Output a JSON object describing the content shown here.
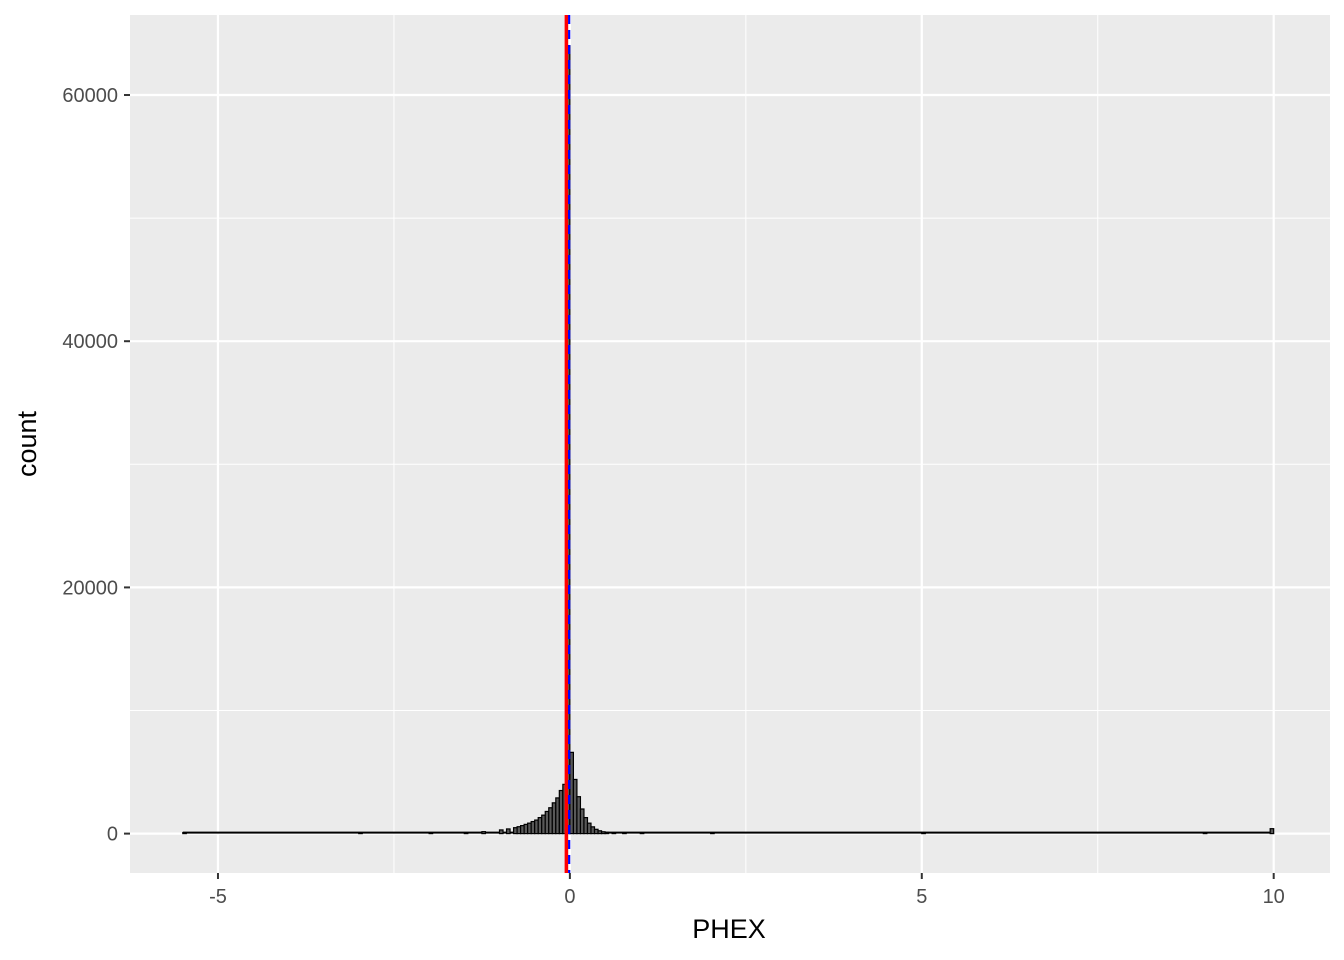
{
  "chart_data": {
    "type": "histogram",
    "title": "",
    "xlabel": "PHEX",
    "ylabel": "count",
    "xlim": [
      -6.25,
      10.8
    ],
    "ylim": [
      -3200,
      66500
    ],
    "x_ticks": [
      -5,
      0,
      5,
      10
    ],
    "x_tick_labels": [
      "-5",
      "0",
      "5",
      "10"
    ],
    "y_ticks": [
      0,
      20000,
      40000,
      60000
    ],
    "y_tick_labels": [
      "0",
      "20000",
      "40000",
      "60000"
    ],
    "grid": true,
    "bin_width": 0.05,
    "bins": [
      {
        "x": -5.5,
        "count": 30
      },
      {
        "x": -3.0,
        "count": 30
      },
      {
        "x": -2.0,
        "count": 40
      },
      {
        "x": -1.5,
        "count": 80
      },
      {
        "x": -1.25,
        "count": 160
      },
      {
        "x": -1.0,
        "count": 300
      },
      {
        "x": -0.9,
        "count": 380
      },
      {
        "x": -0.8,
        "count": 480
      },
      {
        "x": -0.75,
        "count": 560
      },
      {
        "x": -0.7,
        "count": 650
      },
      {
        "x": -0.65,
        "count": 750
      },
      {
        "x": -0.6,
        "count": 850
      },
      {
        "x": -0.55,
        "count": 980
      },
      {
        "x": -0.5,
        "count": 1100
      },
      {
        "x": -0.45,
        "count": 1300
      },
      {
        "x": -0.4,
        "count": 1500
      },
      {
        "x": -0.35,
        "count": 1800
      },
      {
        "x": -0.3,
        "count": 2100
      },
      {
        "x": -0.25,
        "count": 2500
      },
      {
        "x": -0.2,
        "count": 2900
      },
      {
        "x": -0.15,
        "count": 3500
      },
      {
        "x": -0.1,
        "count": 4000
      },
      {
        "x": -0.05,
        "count": 64000
      },
      {
        "x": 0.0,
        "count": 6600
      },
      {
        "x": 0.05,
        "count": 4400
      },
      {
        "x": 0.1,
        "count": 3000
      },
      {
        "x": 0.15,
        "count": 2000
      },
      {
        "x": 0.2,
        "count": 1300
      },
      {
        "x": 0.25,
        "count": 850
      },
      {
        "x": 0.3,
        "count": 550
      },
      {
        "x": 0.35,
        "count": 350
      },
      {
        "x": 0.4,
        "count": 230
      },
      {
        "x": 0.45,
        "count": 150
      },
      {
        "x": 0.5,
        "count": 100
      },
      {
        "x": 0.6,
        "count": 70
      },
      {
        "x": 0.75,
        "count": 50
      },
      {
        "x": 1.0,
        "count": 35
      },
      {
        "x": 2.0,
        "count": 25
      },
      {
        "x": 5.0,
        "count": 20
      },
      {
        "x": 9.0,
        "count": 20
      },
      {
        "x": 9.95,
        "count": 400
      }
    ],
    "reference_lines": [
      {
        "x": -0.05,
        "style": "solid",
        "color": "#ff0000"
      },
      {
        "x": -0.01,
        "style": "dashed",
        "color": "#0000ff"
      }
    ]
  }
}
